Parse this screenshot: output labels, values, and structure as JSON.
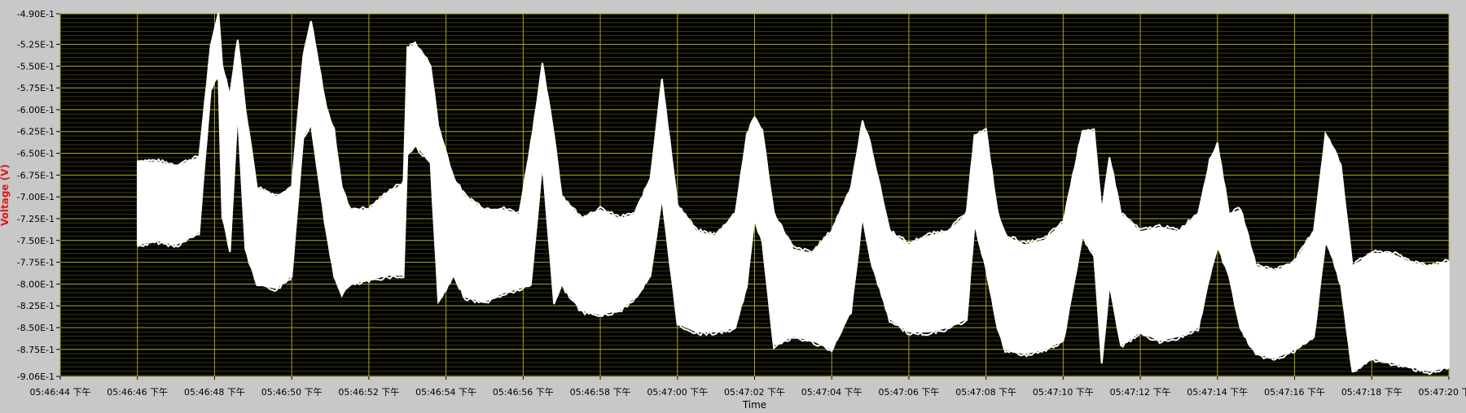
{
  "chart_data": {
    "type": "line",
    "xlabel": "Time",
    "ylabel": "Voltage (V)",
    "xlim": [
      "05:46:44",
      "05:47:20"
    ],
    "ylim": [
      -0.906,
      -0.49
    ],
    "y_tick_labels": [
      "-4.90E-1",
      "-5.25E-1",
      "-5.50E-1",
      "-5.75E-1",
      "-6.00E-1",
      "-6.25E-1",
      "-6.50E-1",
      "-6.75E-1",
      "-7.00E-1",
      "-7.25E-1",
      "-7.50E-1",
      "-7.75E-1",
      "-8.00E-1",
      "-8.25E-1",
      "-8.50E-1",
      "-8.75E-1",
      "-9.06E-1"
    ],
    "y_tick_values": [
      -0.49,
      -0.525,
      -0.55,
      -0.575,
      -0.6,
      -0.625,
      -0.65,
      -0.675,
      -0.7,
      -0.725,
      -0.75,
      -0.775,
      -0.8,
      -0.825,
      -0.85,
      -0.875,
      -0.906
    ],
    "x_tick_labels": [
      "05:46:44 下午",
      "05:46:46 下午",
      "05:46:48 下午",
      "05:46:50 下午",
      "05:46:52 下午",
      "05:46:54 下午",
      "05:46:56 下午",
      "05:46:58 下午",
      "05:47:00 下午",
      "05:47:02 下午",
      "05:47:04 下午",
      "05:47:06 下午",
      "05:47:08 下午",
      "05:47:10 下午",
      "05:47:12 下午",
      "05:47:14 下午",
      "05:47:16 下午",
      "05:47:18 下午",
      "05:47:20 下午"
    ],
    "grid": true,
    "signal_envelope": {
      "x": [
        "05:46:46",
        "05:46:46.5",
        "05:46:47",
        "05:46:47.6",
        "05:46:47.9",
        "05:46:48.1",
        "05:46:48.2",
        "05:46:48.4",
        "05:46:48.6",
        "05:46:48.8",
        "05:46:49.1",
        "05:46:49.6",
        "05:46:50",
        "05:46:50.3",
        "05:46:50.5",
        "05:46:50.9",
        "05:46:51.1",
        "05:46:51.3",
        "05:46:51.5",
        "05:46:52",
        "05:46:52.5",
        "05:46:52.9",
        "05:46:53",
        "05:46:53.2",
        "05:46:53.6",
        "05:46:53.8",
        "05:46:54.2",
        "05:46:54.5",
        "05:46:55",
        "05:46:55.5",
        "05:46:55.9",
        "05:46:56.2",
        "05:46:56.5",
        "05:46:56.8",
        "05:46:57",
        "05:46:57.5",
        "05:46:58",
        "05:46:58.5",
        "05:46:58.9",
        "05:46:59.3",
        "05:46:59.6",
        "05:47:00",
        "05:47:00.5",
        "05:47:01",
        "05:47:01.5",
        "05:47:01.8",
        "05:47:02",
        "05:47:02.2",
        "05:47:02.5",
        "05:47:03",
        "05:47:03.5",
        "05:47:04",
        "05:47:04.5",
        "05:47:04.8",
        "05:47:05",
        "05:47:05.5",
        "05:47:06",
        "05:47:06.5",
        "05:47:07",
        "05:47:07.5",
        "05:47:07.7",
        "05:47:08",
        "05:47:08.3",
        "05:47:08.5",
        "05:47:09",
        "05:47:09.5",
        "05:47:10",
        "05:47:10.5",
        "05:47:10.8",
        "05:47:11",
        "05:47:11.2",
        "05:47:11.5",
        "05:47:12",
        "05:47:12.5",
        "05:47:13",
        "05:47:13.5",
        "05:47:13.8",
        "05:47:14",
        "05:47:14.3",
        "05:47:14.6",
        "05:47:15",
        "05:47:15.5",
        "05:47:16",
        "05:47:16.5",
        "05:47:16.8",
        "05:47:17",
        "05:47:17.2",
        "05:47:17.5",
        "05:47:18",
        "05:47:18.5",
        "05:47:19",
        "05:47:19.5",
        "05:47:20"
      ],
      "upper": [
        -0.66,
        -0.66,
        -0.665,
        -0.655,
        -0.53,
        -0.49,
        -0.55,
        -0.585,
        -0.52,
        -0.6,
        -0.69,
        -0.7,
        -0.69,
        -0.54,
        -0.5,
        -0.6,
        -0.625,
        -0.69,
        -0.715,
        -0.715,
        -0.695,
        -0.685,
        -0.53,
        -0.525,
        -0.55,
        -0.62,
        -0.68,
        -0.7,
        -0.715,
        -0.715,
        -0.72,
        -0.64,
        -0.55,
        -0.63,
        -0.7,
        -0.725,
        -0.715,
        -0.725,
        -0.72,
        -0.68,
        -0.565,
        -0.71,
        -0.74,
        -0.745,
        -0.72,
        -0.63,
        -0.61,
        -0.625,
        -0.72,
        -0.76,
        -0.765,
        -0.74,
        -0.69,
        -0.615,
        -0.64,
        -0.74,
        -0.755,
        -0.745,
        -0.74,
        -0.72,
        -0.63,
        -0.625,
        -0.72,
        -0.745,
        -0.755,
        -0.75,
        -0.73,
        -0.625,
        -0.625,
        -0.72,
        -0.655,
        -0.72,
        -0.74,
        -0.735,
        -0.74,
        -0.72,
        -0.66,
        -0.64,
        -0.72,
        -0.715,
        -0.78,
        -0.785,
        -0.775,
        -0.74,
        -0.63,
        -0.645,
        -0.665,
        -0.78,
        -0.765,
        -0.765,
        -0.775,
        -0.78,
        -0.775
      ],
      "lower": [
        -0.755,
        -0.75,
        -0.755,
        -0.74,
        -0.575,
        -0.56,
        -0.72,
        -0.76,
        -0.6,
        -0.76,
        -0.8,
        -0.805,
        -0.79,
        -0.63,
        -0.615,
        -0.74,
        -0.79,
        -0.81,
        -0.8,
        -0.795,
        -0.79,
        -0.79,
        -0.65,
        -0.64,
        -0.66,
        -0.82,
        -0.79,
        -0.815,
        -0.82,
        -0.81,
        -0.805,
        -0.8,
        -0.66,
        -0.82,
        -0.8,
        -0.83,
        -0.835,
        -0.83,
        -0.815,
        -0.79,
        -0.7,
        -0.845,
        -0.855,
        -0.855,
        -0.85,
        -0.8,
        -0.725,
        -0.75,
        -0.87,
        -0.86,
        -0.865,
        -0.875,
        -0.83,
        -0.72,
        -0.77,
        -0.84,
        -0.855,
        -0.855,
        -0.85,
        -0.84,
        -0.73,
        -0.78,
        -0.85,
        -0.875,
        -0.88,
        -0.875,
        -0.865,
        -0.745,
        -0.765,
        -0.89,
        -0.8,
        -0.87,
        -0.855,
        -0.865,
        -0.86,
        -0.85,
        -0.79,
        -0.755,
        -0.79,
        -0.85,
        -0.88,
        -0.885,
        -0.875,
        -0.86,
        -0.75,
        -0.77,
        -0.8,
        -0.9,
        -0.885,
        -0.89,
        -0.895,
        -0.9,
        -0.895
      ]
    },
    "colors": {
      "frame": "#c8c8c8",
      "plot_background": "#000000",
      "major_grid": "#a8a22a",
      "minor_grid": "#3a3a14",
      "signal": "#ffffff",
      "ylabel": "#e01818",
      "tick_text": "#000000"
    }
  }
}
